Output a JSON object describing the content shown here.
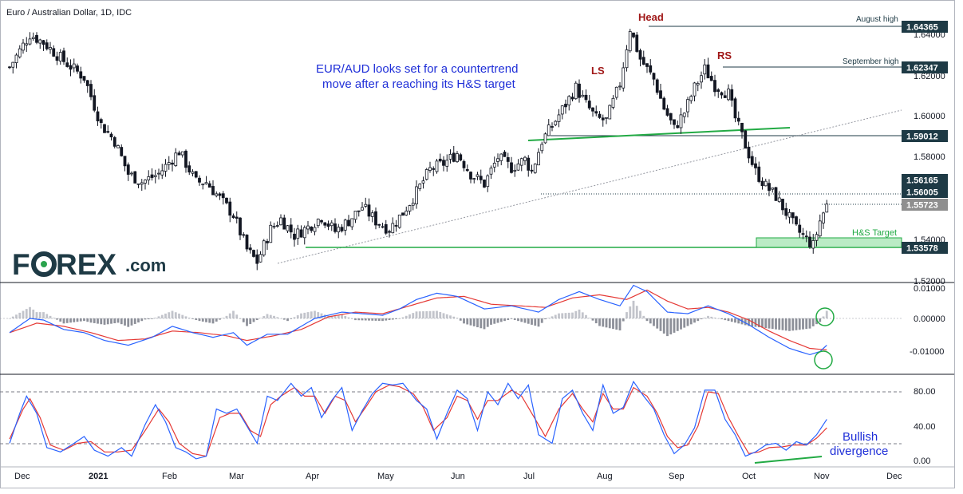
{
  "header": {
    "title": "Euro / Australian Dollar, 1D, IDC"
  },
  "logo": {
    "text_a": "F",
    "text_b": "REX",
    "text_c": ".com"
  },
  "commentary": {
    "line1": "EUR/AUD looks set for a countertrend",
    "line2": "move after a reaching its H&S target"
  },
  "annotations": {
    "head": "Head",
    "ls": "LS",
    "rs": "RS",
    "august_high": "August high",
    "september_high": "September high",
    "hs_target": "H&S Target",
    "bullish_1": "Bullish",
    "bullish_2": "divergence"
  },
  "price_tags": {
    "p1": "1.64365",
    "p2": "1.62347",
    "p3": "1.59012",
    "p4": "1.56165",
    "p5": "1.56005",
    "p6": "1.55723",
    "p7": "1.53578"
  },
  "colors": {
    "up": "#ffffff",
    "down": "#131722",
    "green": "#22aa44",
    "macd": "#2962ff",
    "signal": "#e53935",
    "hist": "#b2b5be",
    "dark_tag": "#1e3a45",
    "text_blue": "#1f2fd8",
    "text_red": "#a01818"
  },
  "chart_data": {
    "type": "candlestick",
    "symbol": "Euro / Australian Dollar",
    "timeframe": "1D",
    "x_labels": [
      "Dec",
      "2021",
      "Feb",
      "Mar",
      "Apr",
      "May",
      "Jun",
      "Jul",
      "Aug",
      "Sep",
      "Oct",
      "Nov",
      "Dec"
    ],
    "price_axis": {
      "min": 1.52,
      "max": 1.65,
      "ticks": [
        1.52,
        1.54,
        1.56,
        1.58,
        1.6,
        1.62,
        1.64
      ]
    },
    "price_anchors": [
      [
        0,
        1.624
      ],
      [
        3,
        1.632
      ],
      [
        6,
        1.64
      ],
      [
        10,
        1.636
      ],
      [
        16,
        1.627
      ],
      [
        22,
        1.619
      ],
      [
        27,
        1.596
      ],
      [
        31,
        1.588
      ],
      [
        35,
        1.572
      ],
      [
        39,
        1.568
      ],
      [
        44,
        1.572
      ],
      [
        50,
        1.583
      ],
      [
        55,
        1.568
      ],
      [
        58,
        1.568
      ],
      [
        62,
        1.56
      ],
      [
        66,
        1.552
      ],
      [
        70,
        1.535
      ],
      [
        73,
        1.529
      ],
      [
        77,
        1.545
      ],
      [
        80,
        1.55
      ],
      [
        84,
        1.542
      ],
      [
        88,
        1.546
      ],
      [
        92,
        1.551
      ],
      [
        96,
        1.544
      ],
      [
        100,
        1.549
      ],
      [
        104,
        1.556
      ],
      [
        108,
        1.549
      ],
      [
        112,
        1.545
      ],
      [
        116,
        1.553
      ],
      [
        120,
        1.563
      ],
      [
        124,
        1.574
      ],
      [
        128,
        1.577
      ],
      [
        132,
        1.582
      ],
      [
        136,
        1.572
      ],
      [
        140,
        1.567
      ],
      [
        144,
        1.58
      ],
      [
        148,
        1.575
      ],
      [
        152,
        1.579
      ],
      [
        154,
        1.573
      ],
      [
        157,
        1.588
      ],
      [
        161,
        1.598
      ],
      [
        164,
        1.606
      ],
      [
        167,
        1.614
      ],
      [
        170,
        1.606
      ],
      [
        173,
        1.599
      ],
      [
        176,
        1.598
      ],
      [
        180,
        1.616
      ],
      [
        183,
        1.643
      ],
      [
        186,
        1.628
      ],
      [
        190,
        1.618
      ],
      [
        193,
        1.604
      ],
      [
        196,
        1.594
      ],
      [
        199,
        1.602
      ],
      [
        202,
        1.614
      ],
      [
        205,
        1.623
      ],
      [
        208,
        1.615
      ],
      [
        212,
        1.611
      ],
      [
        214,
        1.599
      ],
      [
        217,
        1.586
      ],
      [
        220,
        1.573
      ],
      [
        223,
        1.566
      ],
      [
        226,
        1.561
      ],
      [
        229,
        1.553
      ],
      [
        232,
        1.545
      ],
      [
        235,
        1.54
      ],
      [
        237,
        1.537
      ],
      [
        239,
        1.549
      ],
      [
        241,
        1.557
      ]
    ],
    "last_price": 1.55723,
    "levels": [
      {
        "label": "August high",
        "value": 1.64365
      },
      {
        "label": "September high",
        "value": 1.62347
      },
      {
        "value": 1.59012
      },
      {
        "value": 1.56165
      },
      {
        "value": 1.56005
      },
      {
        "label": "H&S Target",
        "value": 1.53578
      }
    ],
    "macd": {
      "axis_ticks": [
        0.01,
        0.0,
        -0.01
      ],
      "macd_anchors": [
        [
          0,
          -0.0045
        ],
        [
          6,
          0.0
        ],
        [
          10,
          -0.0005
        ],
        [
          16,
          -0.0035
        ],
        [
          22,
          -0.0045
        ],
        [
          28,
          -0.007
        ],
        [
          35,
          -0.0085
        ],
        [
          42,
          -0.006
        ],
        [
          48,
          -0.0025
        ],
        [
          54,
          -0.0045
        ],
        [
          60,
          -0.006
        ],
        [
          66,
          -0.0045
        ],
        [
          70,
          -0.0085
        ],
        [
          76,
          -0.005
        ],
        [
          82,
          -0.005
        ],
        [
          90,
          0.0
        ],
        [
          98,
          0.002
        ],
        [
          104,
          0.0015
        ],
        [
          110,
          0.001
        ],
        [
          115,
          0.003
        ],
        [
          120,
          0.006
        ],
        [
          126,
          0.008
        ],
        [
          132,
          0.007
        ],
        [
          140,
          0.003
        ],
        [
          148,
          0.004
        ],
        [
          156,
          0.002
        ],
        [
          162,
          0.006
        ],
        [
          168,
          0.0085
        ],
        [
          174,
          0.006
        ],
        [
          180,
          0.004
        ],
        [
          184,
          0.0105
        ],
        [
          188,
          0.0085
        ],
        [
          194,
          0.002
        ],
        [
          200,
          0.0015
        ],
        [
          206,
          0.004
        ],
        [
          212,
          0.0015
        ],
        [
          218,
          -0.002
        ],
        [
          224,
          -0.006
        ],
        [
          230,
          -0.0095
        ],
        [
          236,
          -0.0115
        ],
        [
          239,
          -0.0105
        ],
        [
          241,
          -0.0085
        ]
      ],
      "signal_anchors": [
        [
          0,
          -0.0045
        ],
        [
          8,
          -0.0015
        ],
        [
          16,
          -0.0025
        ],
        [
          24,
          -0.0045
        ],
        [
          32,
          -0.007
        ],
        [
          40,
          -0.0065
        ],
        [
          48,
          -0.004
        ],
        [
          56,
          -0.0045
        ],
        [
          64,
          -0.0055
        ],
        [
          70,
          -0.007
        ],
        [
          78,
          -0.0055
        ],
        [
          86,
          -0.0035
        ],
        [
          94,
          0.0005
        ],
        [
          102,
          0.002
        ],
        [
          110,
          0.0015
        ],
        [
          118,
          0.004
        ],
        [
          126,
          0.0065
        ],
        [
          134,
          0.007
        ],
        [
          142,
          0.0045
        ],
        [
          150,
          0.004
        ],
        [
          158,
          0.0035
        ],
        [
          166,
          0.0065
        ],
        [
          174,
          0.0075
        ],
        [
          182,
          0.006
        ],
        [
          188,
          0.009
        ],
        [
          194,
          0.0055
        ],
        [
          200,
          0.003
        ],
        [
          206,
          0.0035
        ],
        [
          212,
          0.002
        ],
        [
          218,
          -0.0005
        ],
        [
          224,
          -0.004
        ],
        [
          230,
          -0.007
        ],
        [
          236,
          -0.0095
        ],
        [
          241,
          -0.01
        ]
      ]
    },
    "stochastic": {
      "axis_ticks": [
        80,
        40,
        0
      ],
      "levels": [
        80,
        20
      ],
      "k_anchors": [
        [
          0,
          20
        ],
        [
          3,
          55
        ],
        [
          5,
          75
        ],
        [
          8,
          55
        ],
        [
          11,
          15
        ],
        [
          15,
          10
        ],
        [
          19,
          20
        ],
        [
          22,
          28
        ],
        [
          25,
          12
        ],
        [
          29,
          5
        ],
        [
          33,
          15
        ],
        [
          36,
          5
        ],
        [
          40,
          42
        ],
        [
          43,
          65
        ],
        [
          46,
          45
        ],
        [
          49,
          15
        ],
        [
          52,
          10
        ],
        [
          55,
          2
        ],
        [
          58,
          5
        ],
        [
          61,
          60
        ],
        [
          64,
          55
        ],
        [
          67,
          60
        ],
        [
          70,
          40
        ],
        [
          73,
          20
        ],
        [
          76,
          75
        ],
        [
          79,
          70
        ],
        [
          83,
          90
        ],
        [
          86,
          75
        ],
        [
          89,
          85
        ],
        [
          92,
          50
        ],
        [
          95,
          70
        ],
        [
          98,
          85
        ],
        [
          101,
          35
        ],
        [
          104,
          58
        ],
        [
          107,
          78
        ],
        [
          110,
          90
        ],
        [
          113,
          88
        ],
        [
          116,
          90
        ],
        [
          120,
          70
        ],
        [
          123,
          60
        ],
        [
          126,
          25
        ],
        [
          129,
          55
        ],
        [
          132,
          82
        ],
        [
          135,
          72
        ],
        [
          138,
          35
        ],
        [
          141,
          80
        ],
        [
          144,
          65
        ],
        [
          147,
          90
        ],
        [
          150,
          72
        ],
        [
          153,
          88
        ],
        [
          156,
          30
        ],
        [
          160,
          20
        ],
        [
          163,
          72
        ],
        [
          166,
          82
        ],
        [
          169,
          55
        ],
        [
          172,
          35
        ],
        [
          175,
          88
        ],
        [
          178,
          55
        ],
        [
          181,
          62
        ],
        [
          184,
          92
        ],
        [
          187,
          75
        ],
        [
          190,
          60
        ],
        [
          193,
          30
        ],
        [
          196,
          8
        ],
        [
          199,
          18
        ],
        [
          202,
          38
        ],
        [
          205,
          82
        ],
        [
          208,
          82
        ],
        [
          211,
          48
        ],
        [
          214,
          30
        ],
        [
          217,
          5
        ],
        [
          220,
          10
        ],
        [
          223,
          18
        ],
        [
          226,
          20
        ],
        [
          229,
          12
        ],
        [
          232,
          22
        ],
        [
          235,
          18
        ],
        [
          238,
          30
        ],
        [
          241,
          48
        ]
      ],
      "d_anchors": [
        [
          0,
          25
        ],
        [
          4,
          60
        ],
        [
          6,
          72
        ],
        [
          9,
          50
        ],
        [
          12,
          18
        ],
        [
          16,
          12
        ],
        [
          20,
          20
        ],
        [
          24,
          22
        ],
        [
          28,
          10
        ],
        [
          32,
          10
        ],
        [
          36,
          12
        ],
        [
          40,
          35
        ],
        [
          44,
          60
        ],
        [
          47,
          45
        ],
        [
          50,
          20
        ],
        [
          54,
          8
        ],
        [
          58,
          5
        ],
        [
          62,
          50
        ],
        [
          65,
          55
        ],
        [
          68,
          55
        ],
        [
          71,
          35
        ],
        [
          74,
          28
        ],
        [
          77,
          65
        ],
        [
          80,
          75
        ],
        [
          84,
          85
        ],
        [
          87,
          75
        ],
        [
          90,
          75
        ],
        [
          93,
          55
        ],
        [
          96,
          75
        ],
        [
          99,
          70
        ],
        [
          102,
          45
        ],
        [
          105,
          62
        ],
        [
          108,
          80
        ],
        [
          112,
          88
        ],
        [
          115,
          86
        ],
        [
          119,
          78
        ],
        [
          122,
          62
        ],
        [
          125,
          35
        ],
        [
          129,
          50
        ],
        [
          132,
          75
        ],
        [
          135,
          70
        ],
        [
          138,
          48
        ],
        [
          141,
          70
        ],
        [
          144,
          70
        ],
        [
          148,
          82
        ],
        [
          151,
          75
        ],
        [
          154,
          55
        ],
        [
          158,
          28
        ],
        [
          162,
          60
        ],
        [
          166,
          78
        ],
        [
          169,
          60
        ],
        [
          172,
          45
        ],
        [
          175,
          78
        ],
        [
          178,
          60
        ],
        [
          181,
          60
        ],
        [
          184,
          85
        ],
        [
          188,
          75
        ],
        [
          191,
          55
        ],
        [
          194,
          28
        ],
        [
          197,
          15
        ],
        [
          200,
          18
        ],
        [
          203,
          40
        ],
        [
          206,
          80
        ],
        [
          209,
          78
        ],
        [
          212,
          50
        ],
        [
          215,
          28
        ],
        [
          218,
          8
        ],
        [
          221,
          10
        ],
        [
          224,
          15
        ],
        [
          228,
          16
        ],
        [
          231,
          18
        ],
        [
          235,
          18
        ],
        [
          238,
          26
        ],
        [
          241,
          38
        ]
      ]
    }
  }
}
